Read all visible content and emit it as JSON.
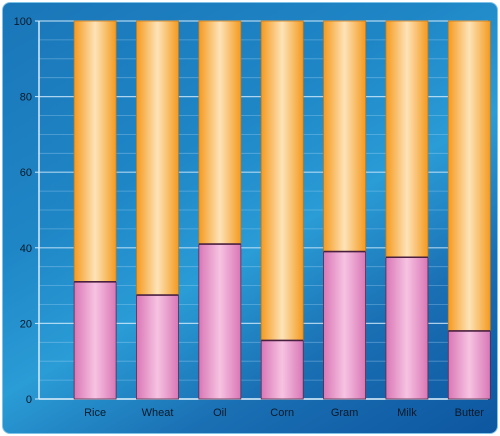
{
  "chart_data": {
    "type": "bar",
    "stacked": true,
    "categories": [
      "Rice",
      "Wheat",
      "Oil",
      "Corn",
      "Gram",
      "Milk",
      "Butter"
    ],
    "series": [
      {
        "values": [
          31,
          27.5,
          41,
          15.5,
          39,
          37.5,
          18
        ],
        "color": "#e58ac4"
      },
      {
        "values": [
          69,
          72.5,
          59,
          84.5,
          61,
          62.5,
          82
        ],
        "color": "#f7a83a"
      }
    ],
    "ylim": [
      0,
      100
    ],
    "yticks": [
      0,
      20,
      40,
      60,
      80,
      100
    ],
    "grid": true,
    "background_color": "#1a76b8"
  }
}
